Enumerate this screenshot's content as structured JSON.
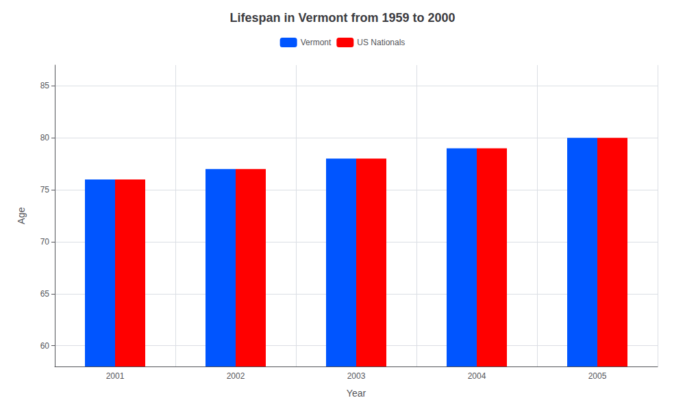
{
  "chart_data": {
    "type": "bar",
    "title": "Lifespan in Vermont from 1959 to 2000",
    "xlabel": "Year",
    "ylabel": "Age",
    "categories": [
      "2001",
      "2002",
      "2003",
      "2004",
      "2005"
    ],
    "series": [
      {
        "name": "Vermont",
        "color": "#0055ff",
        "values": [
          76,
          77,
          78,
          79,
          80
        ]
      },
      {
        "name": "US Nationals",
        "color": "#ff0000",
        "values": [
          76,
          77,
          78,
          79,
          80
        ]
      }
    ],
    "ylim": [
      58,
      87
    ],
    "yticks": [
      60,
      65,
      70,
      75,
      80,
      85
    ],
    "grid": true,
    "legend": "top"
  }
}
